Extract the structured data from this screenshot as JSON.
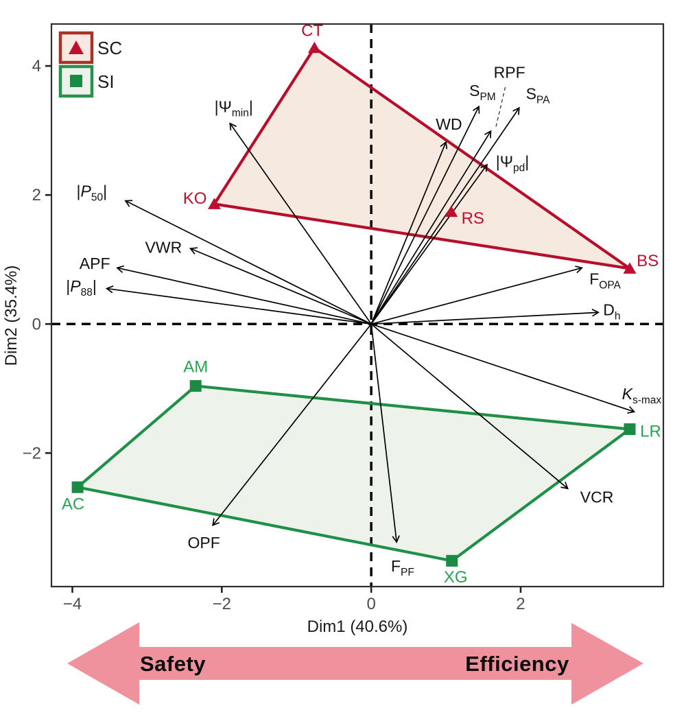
{
  "figure": {
    "legend": {
      "items": [
        {
          "label": "SC",
          "marker": "triangle",
          "border": "#a93228",
          "fill": "#f6e9e2",
          "symbol_color": "#c00f2e"
        },
        {
          "label": "SI",
          "marker": "square",
          "border": "#27924b",
          "fill": "#edf2ec",
          "symbol_color": "#1b8a42"
        }
      ]
    },
    "bottom_arrow": {
      "left_label": "Safety",
      "right_label": "Efficiency",
      "color": "#f0919e"
    }
  },
  "chart_data": {
    "type": "scatter",
    "subtype": "pca-biplot",
    "title": "",
    "xlabel": "Dim1 (40.6%)",
    "ylabel": "Dim2 (35.4%)",
    "xlim": [
      -4.28,
      3.91
    ],
    "ylim": [
      -4.07,
      4.65
    ],
    "x_ticks": [
      -4,
      -2,
      0,
      2
    ],
    "y_ticks": [
      4,
      2,
      0,
      -2
    ],
    "grid": false,
    "zero_lines": {
      "style": "dashed",
      "color": "#000000"
    },
    "groups": [
      {
        "name": "SC",
        "marker": "triangle",
        "stroke": "#b60e2b",
        "fill": "#f6e9df",
        "marker_color": "#c00f2e",
        "label_color": "#c00f2e",
        "points": [
          {
            "id": "CT",
            "x": -0.76,
            "y": 4.28,
            "label": {
              "x": -0.79,
              "y": 4.55
            }
          },
          {
            "id": "KO",
            "x": -2.1,
            "y": 1.86,
            "label": {
              "x": -2.36,
              "y": 1.95
            }
          },
          {
            "id": "RS",
            "x": 1.07,
            "y": 1.74,
            "label": {
              "x": 1.36,
              "y": 1.64
            }
          },
          {
            "id": "BS",
            "x": 3.46,
            "y": 0.86,
            "label": {
              "x": 3.7,
              "y": 0.98
            }
          }
        ],
        "hull": [
          "CT",
          "KO",
          "BS"
        ]
      },
      {
        "name": "SI",
        "marker": "square",
        "stroke": "#1f9048",
        "fill": "#edf2eb",
        "marker_color": "#1b8a42",
        "label_color": "#27a352",
        "points": [
          {
            "id": "AM",
            "x": -2.35,
            "y": -0.96,
            "label": {
              "x": -2.35,
              "y": -0.66
            }
          },
          {
            "id": "AC",
            "x": -3.93,
            "y": -2.53,
            "label": {
              "x": -3.99,
              "y": -2.79
            }
          },
          {
            "id": "XG",
            "x": 1.08,
            "y": -3.67,
            "label": {
              "x": 1.13,
              "y": -3.92
            }
          },
          {
            "id": "LR",
            "x": 3.46,
            "y": -1.63,
            "label": {
              "x": 3.74,
              "y": -1.66
            }
          }
        ],
        "hull": [
          "AM",
          "LR",
          "XG",
          "AC"
        ]
      }
    ],
    "loadings": [
      {
        "id": "psi_min",
        "text": "|Ψmin|",
        "segments": [
          {
            "t": "|Ψ"
          },
          {
            "t": "min",
            "sub": true
          },
          {
            "t": "|"
          }
        ],
        "x": -1.89,
        "y": 3.11,
        "label": {
          "x": -1.84,
          "y": 3.37
        }
      },
      {
        "id": "P50",
        "text": "|P50|",
        "segments": [
          {
            "t": "|"
          },
          {
            "t": "P",
            "italic": true
          },
          {
            "t": "50",
            "sub": true
          },
          {
            "t": "|"
          }
        ],
        "x": -3.29,
        "y": 1.91,
        "label": {
          "x": -3.74,
          "y": 2.06
        }
      },
      {
        "id": "VWR",
        "text": "VWR",
        "segments": [
          {
            "t": "VWR"
          }
        ],
        "x": -2.42,
        "y": 1.17,
        "label": {
          "x": -2.78,
          "y": 1.19
        }
      },
      {
        "id": "APF",
        "text": "APF",
        "segments": [
          {
            "t": "APF"
          }
        ],
        "x": -3.4,
        "y": 0.87,
        "label": {
          "x": -3.7,
          "y": 0.94
        }
      },
      {
        "id": "P88",
        "text": "|P88|",
        "segments": [
          {
            "t": "|"
          },
          {
            "t": "P",
            "italic": true
          },
          {
            "t": "88",
            "sub": true
          },
          {
            "t": "|"
          }
        ],
        "x": -3.54,
        "y": 0.55,
        "label": {
          "x": -3.88,
          "y": 0.59
        }
      },
      {
        "id": "WD",
        "text": "WD",
        "segments": [
          {
            "t": "WD"
          }
        ],
        "x": 1.0,
        "y": 2.82,
        "label": {
          "x": 1.04,
          "y": 3.1
        }
      },
      {
        "id": "SPM",
        "text": "SPM",
        "segments": [
          {
            "t": "S"
          },
          {
            "t": "PM",
            "sub": true
          }
        ],
        "x": 1.44,
        "y": 3.37,
        "label": {
          "x": 1.49,
          "y": 3.62
        }
      },
      {
        "id": "RPF",
        "text": "RPF",
        "segments": [
          {
            "t": "RPF"
          }
        ],
        "x": 1.6,
        "y": 2.99,
        "label": {
          "x": 1.85,
          "y": 3.9
        },
        "leader": {
          "x1": 1.67,
          "y1": 3.06,
          "x2": 1.8,
          "y2": 3.7
        }
      },
      {
        "id": "SPA",
        "text": "SPA",
        "segments": [
          {
            "t": "S"
          },
          {
            "t": "PA",
            "sub": true
          }
        ],
        "x": 1.98,
        "y": 3.35,
        "label": {
          "x": 2.23,
          "y": 3.57
        }
      },
      {
        "id": "psi_pd",
        "text": "|Ψpd|",
        "segments": [
          {
            "t": "|Ψ"
          },
          {
            "t": "pd",
            "sub": true
          },
          {
            "t": "|"
          }
        ],
        "x": 1.55,
        "y": 2.47,
        "label": {
          "x": 1.89,
          "y": 2.52
        }
      },
      {
        "id": "FOPA",
        "text": "FOPA",
        "segments": [
          {
            "t": "F"
          },
          {
            "t": "OPA",
            "sub": true
          }
        ],
        "x": 2.82,
        "y": 0.87,
        "label": {
          "x": 3.13,
          "y": 0.7
        }
      },
      {
        "id": "Dh",
        "text": "Dh",
        "segments": [
          {
            "t": "D"
          },
          {
            "t": "h",
            "sub": true
          }
        ],
        "x": 3.04,
        "y": 0.18,
        "label": {
          "x": 3.22,
          "y": 0.22
        }
      },
      {
        "id": "Ksmax",
        "text": "Ks-max",
        "segments": [
          {
            "t": "K",
            "italic": true
          },
          {
            "t": "s-max",
            "sub": true
          }
        ],
        "x": 3.52,
        "y": -1.36,
        "label": {
          "x": 3.62,
          "y": -1.08
        }
      },
      {
        "id": "VCR",
        "text": "VCR",
        "segments": [
          {
            "t": "VCR"
          }
        ],
        "x": 2.63,
        "y": -2.55,
        "label": {
          "x": 3.02,
          "y": -2.68
        }
      },
      {
        "id": "FPF",
        "text": "FPF",
        "segments": [
          {
            "t": "F"
          },
          {
            "t": "PF",
            "sub": true
          }
        ],
        "x": 0.34,
        "y": -3.38,
        "label": {
          "x": 0.42,
          "y": -3.75
        }
      },
      {
        "id": "OPF",
        "text": "OPF",
        "segments": [
          {
            "t": "OPF"
          }
        ],
        "x": -2.12,
        "y": -3.12,
        "label": {
          "x": -2.24,
          "y": -3.39
        }
      }
    ],
    "style": {
      "arrow_color": "#000000",
      "trait_label_color": "#111111",
      "tick_label_color": "#4d4d4d",
      "axis_title_color": "#1a1a1a",
      "border_color": "#2e2e2e"
    }
  }
}
